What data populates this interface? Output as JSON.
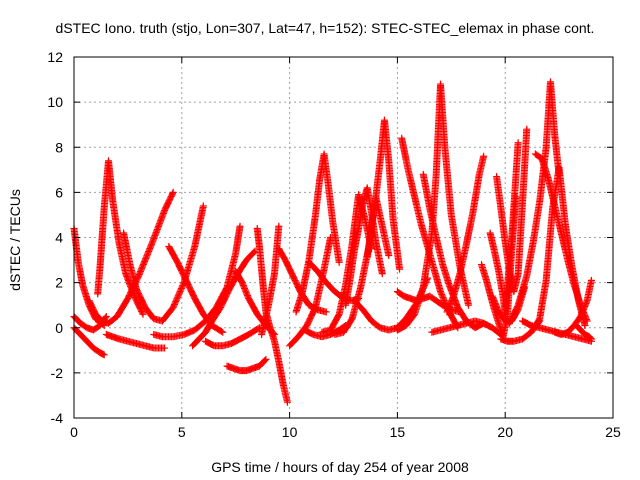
{
  "chart_data": {
    "type": "scatter",
    "title": "dSTEC Iono. truth (stjo, Lon=307, Lat=47, h=152): STEC-STEC_elemax in phase cont.",
    "xlabel": "GPS time / hours of day 254 of year 2008",
    "ylabel": "dSTEC  / TECUs",
    "xlim": [
      0,
      25
    ],
    "ylim": [
      -4,
      12
    ],
    "xticks": [
      0,
      5,
      10,
      15,
      20,
      25
    ],
    "yticks": [
      -4,
      -2,
      0,
      2,
      4,
      6,
      8,
      10,
      12
    ],
    "grid": true,
    "marker": "+",
    "colors": {
      "series": "#ff0000",
      "grid": "#a0a0a0",
      "axes": "#000000"
    },
    "series": [
      {
        "x": [
          0.0,
          0.3,
          0.6,
          0.9,
          1.2,
          1.4
        ],
        "y": [
          0.0,
          -0.3,
          -0.6,
          -0.9,
          -1.1,
          -1.2
        ]
      },
      {
        "x": [
          0.0,
          0.2,
          0.4,
          0.7,
          1.0,
          1.4
        ],
        "y": [
          4.4,
          2.9,
          1.9,
          1.0,
          0.4,
          0.1
        ]
      },
      {
        "x": [
          0.0,
          0.3,
          0.6,
          0.9,
          1.2,
          1.5
        ],
        "y": [
          0.5,
          0.2,
          0.0,
          -0.1,
          0.1,
          0.5
        ]
      },
      {
        "x": [
          1.1,
          1.2,
          1.4,
          1.6,
          1.8,
          2.1,
          2.4,
          2.8,
          3.2
        ],
        "y": [
          1.5,
          2.6,
          5.3,
          7.4,
          5.6,
          3.7,
          2.4,
          1.4,
          0.6
        ]
      },
      {
        "x": [
          1.5,
          1.8,
          2.1,
          2.5,
          2.9,
          3.3,
          3.7,
          4.2
        ],
        "y": [
          -0.3,
          -0.4,
          -0.5,
          -0.6,
          -0.7,
          -0.8,
          -0.9,
          -0.9
        ]
      },
      {
        "x": [
          0.7,
          1.0,
          1.3,
          1.6,
          2.0,
          2.5,
          3.0,
          3.6,
          4.2,
          4.6
        ],
        "y": [
          1.2,
          0.6,
          0.3,
          0.2,
          0.5,
          1.3,
          2.3,
          3.7,
          5.2,
          6.0
        ]
      },
      {
        "x": [
          2.3,
          2.6,
          2.9,
          3.3,
          3.7,
          4.1,
          4.6,
          5.1,
          5.6,
          6.0
        ],
        "y": [
          4.2,
          2.8,
          1.7,
          0.9,
          0.4,
          0.3,
          0.9,
          2.0,
          3.6,
          5.4
        ]
      },
      {
        "x": [
          4.4,
          4.8,
          5.2,
          5.6,
          6.0,
          6.4,
          6.9
        ],
        "y": [
          3.6,
          2.9,
          2.1,
          1.3,
          0.6,
          0.1,
          -0.2
        ]
      },
      {
        "x": [
          3.7,
          4.1,
          4.6,
          5.1,
          5.6,
          6.1,
          6.6,
          7.1,
          7.5,
          7.7
        ],
        "y": [
          -0.3,
          -0.4,
          -0.4,
          -0.3,
          -0.1,
          0.3,
          0.9,
          1.8,
          3.3,
          4.5
        ]
      },
      {
        "x": [
          6.1,
          6.5,
          6.9,
          7.3,
          7.7,
          8.1,
          8.6
        ],
        "y": [
          -0.6,
          -0.8,
          -0.8,
          -0.7,
          -0.5,
          -0.3,
          0.0
        ]
      },
      {
        "x": [
          5.5,
          5.8,
          6.1,
          6.4,
          6.8,
          7.2,
          7.6,
          8.0,
          8.4
        ],
        "y": [
          -0.8,
          -0.5,
          -0.2,
          0.3,
          0.9,
          1.7,
          2.4,
          3.0,
          3.4
        ]
      },
      {
        "x": [
          7.1,
          7.4,
          7.7,
          8.0,
          8.3,
          8.6,
          8.9
        ],
        "y": [
          -1.7,
          -1.8,
          -1.9,
          -1.9,
          -1.8,
          -1.7,
          -1.4
        ]
      },
      {
        "x": [
          7.5,
          7.8,
          8.1,
          8.5,
          8.9,
          9.3
        ],
        "y": [
          2.5,
          2.0,
          1.3,
          0.6,
          0.1,
          -0.3
        ]
      },
      {
        "x": [
          8.5,
          8.6,
          8.7,
          8.8,
          8.9,
          9.1,
          9.3,
          9.5,
          9.7,
          9.9
        ],
        "y": [
          4.4,
          3.6,
          2.6,
          1.6,
          0.7,
          0.0,
          -0.6,
          -1.5,
          -2.5,
          -3.3
        ]
      },
      {
        "x": [
          8.7,
          9.0,
          9.3,
          9.5
        ],
        "y": [
          -0.3,
          0.9,
          2.4,
          4.5
        ]
      },
      {
        "x": [
          10.0,
          10.4,
          10.8,
          11.2,
          11.6,
          11.9
        ],
        "y": [
          -0.8,
          -0.4,
          0.1,
          0.9,
          2.6,
          4.0
        ]
      },
      {
        "x": [
          9.5,
          9.8,
          10.1,
          10.5,
          10.9,
          11.3,
          11.7
        ],
        "y": [
          3.5,
          3.0,
          2.4,
          1.6,
          1.0,
          0.8,
          0.7
        ]
      },
      {
        "x": [
          10.3,
          10.6,
          10.9,
          11.2,
          11.4,
          11.6,
          11.8,
          12.0,
          12.3
        ],
        "y": [
          0.7,
          1.6,
          3.0,
          5.0,
          6.6,
          7.7,
          6.3,
          4.7,
          2.9
        ]
      },
      {
        "x": [
          10.9,
          11.3,
          11.7,
          12.1,
          12.5,
          12.9,
          13.2
        ],
        "y": [
          2.9,
          2.5,
          2.0,
          1.6,
          1.3,
          1.2,
          1.3
        ]
      },
      {
        "x": [
          10.7,
          11.1,
          11.5,
          11.9,
          12.3,
          12.6
        ],
        "y": [
          -0.1,
          -0.3,
          -0.4,
          -0.3,
          -0.1,
          0.1
        ]
      },
      {
        "x": [
          11.5,
          11.9,
          12.3,
          12.6,
          12.9,
          13.2,
          13.5,
          13.8
        ],
        "y": [
          -0.2,
          -0.1,
          0.6,
          1.9,
          3.7,
          5.9,
          4.8,
          3.5
        ]
      },
      {
        "x": [
          12.1,
          12.5,
          12.9,
          13.3,
          13.7,
          14.0,
          14.3,
          14.6
        ],
        "y": [
          -0.3,
          -0.2,
          0.4,
          1.8,
          3.7,
          5.8,
          4.5,
          3.2
        ]
      },
      {
        "x": [
          12.6,
          12.8,
          13.0,
          13.2,
          13.4,
          13.6,
          13.8,
          14.0,
          14.3
        ],
        "y": [
          1.0,
          2.1,
          3.4,
          4.4,
          5.5,
          6.2,
          5.1,
          3.8,
          2.4
        ]
      },
      {
        "x": [
          13.6,
          13.8,
          14.0,
          14.2,
          14.4,
          14.6,
          14.8,
          15.1
        ],
        "y": [
          3.1,
          4.5,
          5.8,
          7.4,
          9.2,
          7.4,
          4.8,
          2.6
        ]
      },
      {
        "x": [
          13.0,
          13.4,
          13.8,
          14.2,
          14.6,
          15.0,
          15.4,
          15.9,
          16.4
        ],
        "y": [
          1.2,
          0.8,
          0.3,
          0.0,
          -0.1,
          0.0,
          0.4,
          1.1,
          2.2
        ]
      },
      {
        "x": [
          15.0,
          15.3,
          15.6,
          15.9,
          16.2,
          16.5,
          16.8,
          17.1,
          17.5,
          17.9
        ],
        "y": [
          1.6,
          1.4,
          1.3,
          1.2,
          1.3,
          1.4,
          1.2,
          1.0,
          0.8,
          0.7
        ]
      },
      {
        "x": [
          15.2,
          15.5,
          15.8,
          16.1,
          16.4,
          16.7,
          17.0,
          17.4,
          17.8
        ],
        "y": [
          8.4,
          7.0,
          5.8,
          4.6,
          3.6,
          2.6,
          1.6,
          0.7,
          0.0
        ]
      },
      {
        "x": [
          15.0,
          15.4,
          15.8,
          16.2,
          16.6,
          16.8,
          17.0,
          17.2,
          17.5,
          17.9,
          18.3
        ],
        "y": [
          -0.1,
          0.1,
          0.6,
          1.8,
          4.2,
          6.8,
          10.8,
          8.0,
          5.0,
          2.7,
          1.0
        ]
      },
      {
        "x": [
          16.2,
          16.5,
          16.8,
          17.1,
          17.4,
          17.8,
          18.2,
          18.6,
          19.0
        ],
        "y": [
          6.8,
          5.3,
          4.0,
          2.8,
          1.9,
          0.9,
          0.3,
          0.0,
          0.2
        ]
      },
      {
        "x": [
          17.3,
          17.6,
          17.9,
          18.2,
          18.5,
          18.8,
          19.0
        ],
        "y": [
          0.7,
          1.4,
          2.4,
          3.7,
          5.1,
          6.8,
          7.6
        ]
      },
      {
        "x": [
          16.6,
          17.0,
          17.4,
          17.8,
          18.2,
          18.6,
          19.0,
          19.4,
          19.8
        ],
        "y": [
          -0.2,
          -0.1,
          0.0,
          0.1,
          0.2,
          0.3,
          0.2,
          0.0,
          -0.3
        ]
      },
      {
        "x": [
          18.9,
          19.1,
          19.3,
          19.5,
          19.7,
          19.9,
          20.1,
          20.3,
          20.5
        ],
        "y": [
          2.8,
          2.2,
          1.5,
          0.8,
          0.2,
          -0.4,
          0.5,
          3.4,
          5.8
        ]
      },
      {
        "x": [
          19.3,
          19.5,
          19.7,
          19.9,
          20.0,
          20.1,
          20.3,
          20.6
        ],
        "y": [
          4.2,
          3.4,
          2.5,
          1.4,
          0.6,
          1.8,
          3.9,
          8.2
        ]
      },
      {
        "x": [
          19.4,
          19.7,
          20.0,
          20.3,
          20.6,
          20.9
        ],
        "y": [
          1.4,
          0.7,
          0.3,
          0.3,
          0.8,
          1.8
        ]
      },
      {
        "x": [
          19.6,
          19.8,
          20.0,
          20.2,
          20.4,
          20.6,
          20.8,
          21.0
        ],
        "y": [
          6.7,
          5.3,
          3.8,
          2.5,
          1.6,
          2.4,
          5.5,
          8.8
        ]
      },
      {
        "x": [
          19.8,
          20.1,
          20.4,
          20.8,
          21.2,
          21.6
        ],
        "y": [
          -0.5,
          -0.6,
          -0.6,
          -0.5,
          -0.2,
          0.3
        ]
      },
      {
        "x": [
          20.2,
          20.6,
          21.0,
          21.3,
          21.6,
          21.9,
          22.1,
          22.3,
          22.5
        ],
        "y": [
          0.2,
          1.0,
          2.3,
          3.8,
          5.6,
          8.0,
          10.9,
          8.5,
          6.8
        ]
      },
      {
        "x": [
          21.3,
          21.6,
          21.9,
          22.2,
          22.5,
          22.8,
          23.1,
          23.4,
          23.7
        ],
        "y": [
          -0.1,
          0.4,
          2.1,
          5.3,
          7.1,
          4.5,
          2.7,
          1.2,
          0.1
        ]
      },
      {
        "x": [
          21.4,
          21.7,
          22.0,
          22.3,
          22.6,
          22.9,
          23.2,
          23.5,
          23.8
        ],
        "y": [
          7.7,
          7.5,
          6.6,
          5.4,
          4.2,
          3.0,
          1.9,
          1.0,
          0.3
        ]
      },
      {
        "x": [
          20.8,
          21.2,
          21.6,
          22.0,
          22.4,
          22.8,
          23.2,
          23.6,
          24.0
        ],
        "y": [
          0.3,
          0.1,
          0.0,
          -0.1,
          -0.2,
          -0.3,
          -0.4,
          -0.5,
          -0.6
        ]
      },
      {
        "x": [
          22.3,
          22.6,
          22.9,
          23.2,
          23.5,
          23.8,
          24.0
        ],
        "y": [
          -0.2,
          -0.3,
          -0.2,
          0.1,
          0.5,
          1.2,
          2.1
        ]
      },
      {
        "x": [
          23.3,
          23.5,
          23.7,
          23.9,
          24.0
        ],
        "y": [
          0.1,
          -0.1,
          -0.3,
          -0.4,
          -0.5
        ]
      }
    ]
  }
}
